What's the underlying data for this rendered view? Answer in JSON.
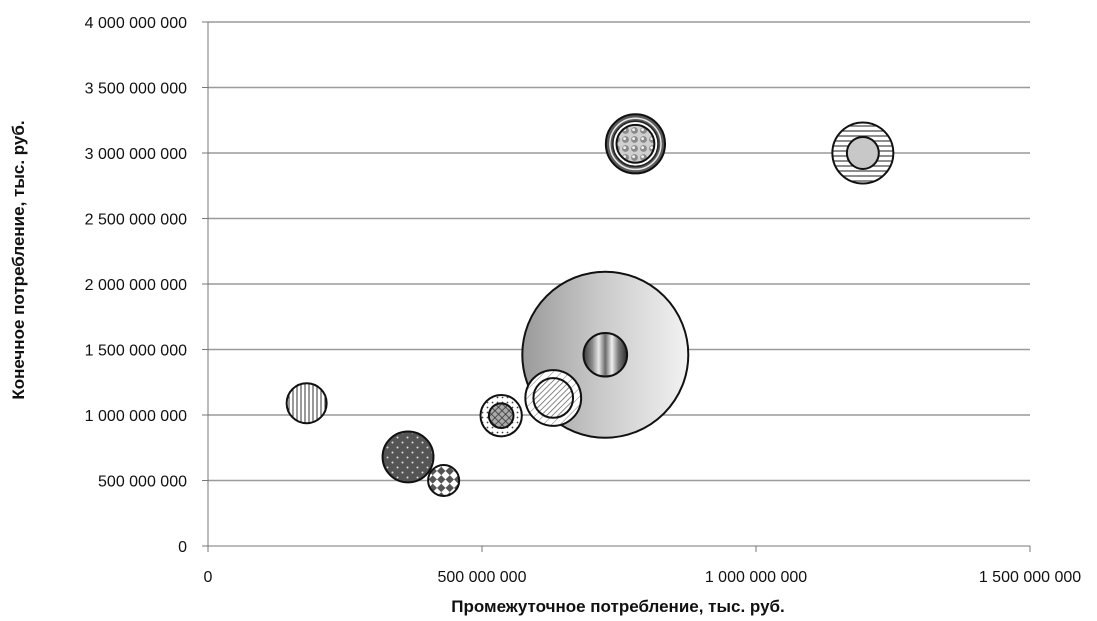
{
  "chart_data": {
    "type": "bubble",
    "title": "",
    "xlabel": "Промежуточное потребление, тыс. руб.",
    "ylabel": "Конечное потребление, тыс. руб.",
    "xlim": [
      0,
      1500000000
    ],
    "ylim": [
      0,
      4000000000
    ],
    "x_ticks": [
      0,
      500000000,
      1000000000,
      1500000000
    ],
    "x_tick_labels": [
      "0",
      "500 000 000",
      "1 000 000 000",
      "1 500 000 000"
    ],
    "y_ticks": [
      0,
      500000000,
      1000000000,
      1500000000,
      2000000000,
      2500000000,
      3000000000,
      3500000000,
      4000000000
    ],
    "y_tick_labels": [
      "0",
      "500 000 000",
      "1 000 000 000",
      "1 500 000 000",
      "2 000 000 000",
      "2 500 000 000",
      "3 000 000 000",
      "3 500 000 000",
      "4 000 000 000"
    ],
    "grid": "horizontal",
    "legend": "none",
    "bubbles": [
      {
        "x": 725000000,
        "y": 1460000000,
        "size": 1,
        "pattern": "gradient-horizontal"
      },
      {
        "x": 180000000,
        "y": 1090000000,
        "size": 0.058,
        "pattern": "vertical-lines"
      },
      {
        "x": 365000000,
        "y": 680000000,
        "size": 0.094,
        "pattern": "dark-dots"
      },
      {
        "x": 430000000,
        "y": 500000000,
        "size": 0.035,
        "pattern": "diamond-checker"
      },
      {
        "x": 535000000,
        "y": 995000000,
        "size": 0.062,
        "pattern": "dots-ring"
      },
      {
        "x": 535000000,
        "y": 995000000,
        "size": 0.022,
        "pattern": "crosshatch-dark"
      },
      {
        "x": 630000000,
        "y": 1130000000,
        "size": 0.113,
        "pattern": "diagonal-ring"
      },
      {
        "x": 630000000,
        "y": 1130000000,
        "size": 0.057,
        "pattern": "diagonal-dense"
      },
      {
        "x": 725000000,
        "y": 1460000000,
        "size": 0.069,
        "pattern": "gradient-vertical"
      },
      {
        "x": 780000000,
        "y": 3070000000,
        "size": 0.127,
        "pattern": "dark-ring"
      },
      {
        "x": 780000000,
        "y": 3070000000,
        "size": 0.052,
        "pattern": "sphere-dots"
      },
      {
        "x": 1195000000,
        "y": 3000000000,
        "size": 0.135,
        "pattern": "horizontal-lines"
      },
      {
        "x": 1195000000,
        "y": 3000000000,
        "size": 0.037,
        "pattern": "light-gray"
      }
    ]
  }
}
